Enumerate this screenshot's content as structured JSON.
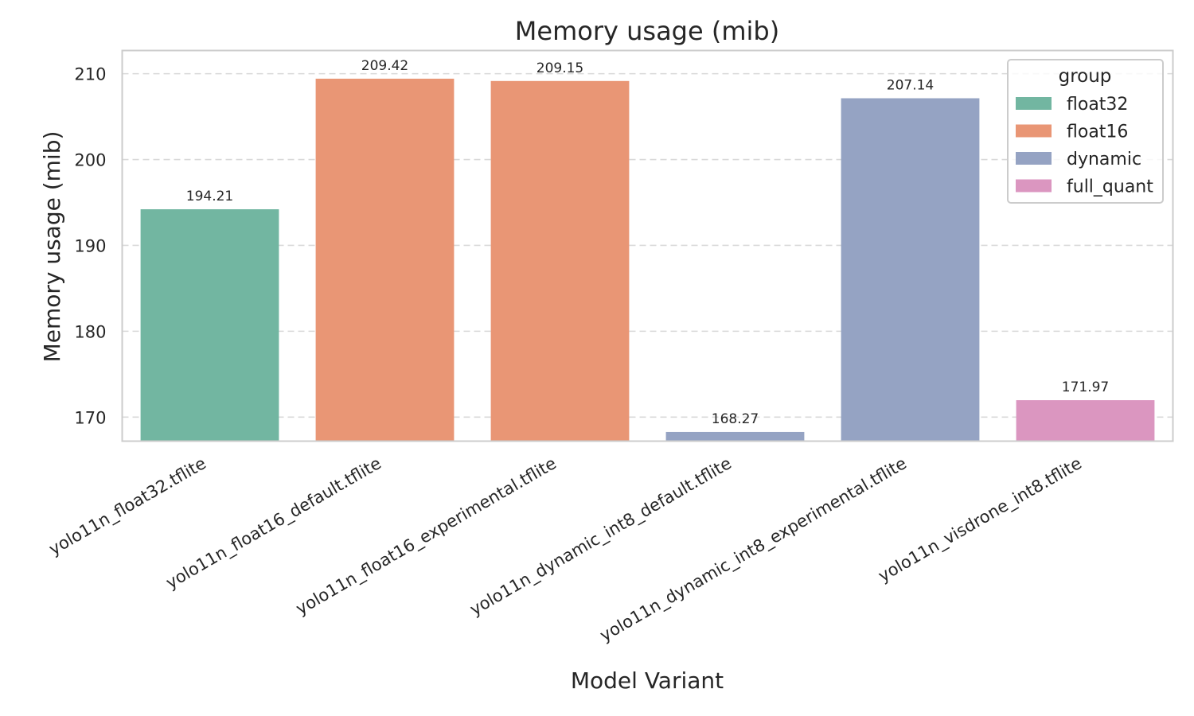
{
  "chart_data": {
    "type": "bar",
    "title": "Memory usage (mib)",
    "xlabel": "Model Variant",
    "ylabel": "Memory usage (mib)",
    "ylim": [
      167.2,
      212.7
    ],
    "yticks": [
      170,
      180,
      190,
      200,
      210
    ],
    "grid": "y-dashed",
    "categories": [
      "yolo11n_float32.tflite",
      "yolo11n_float16_default.tflite",
      "yolo11n_float16_experimental.tflite",
      "yolo11n_dynamic_int8_default.tflite",
      "yolo11n_dynamic_int8_experimental.tflite",
      "yolo11n_visdrone_int8.tflite"
    ],
    "values": [
      194.21,
      209.42,
      209.15,
      168.27,
      207.14,
      171.97
    ],
    "groups": [
      "float32",
      "float16",
      "float16",
      "dynamic",
      "dynamic",
      "full_quant"
    ],
    "legend": {
      "title": "group",
      "placement": "top-right",
      "entries": [
        {
          "label": "float32",
          "color": "#72b6a1"
        },
        {
          "label": "float16",
          "color": "#e99675"
        },
        {
          "label": "dynamic",
          "color": "#95a3c3"
        },
        {
          "label": "full_quant",
          "color": "#db96c0"
        }
      ]
    }
  }
}
